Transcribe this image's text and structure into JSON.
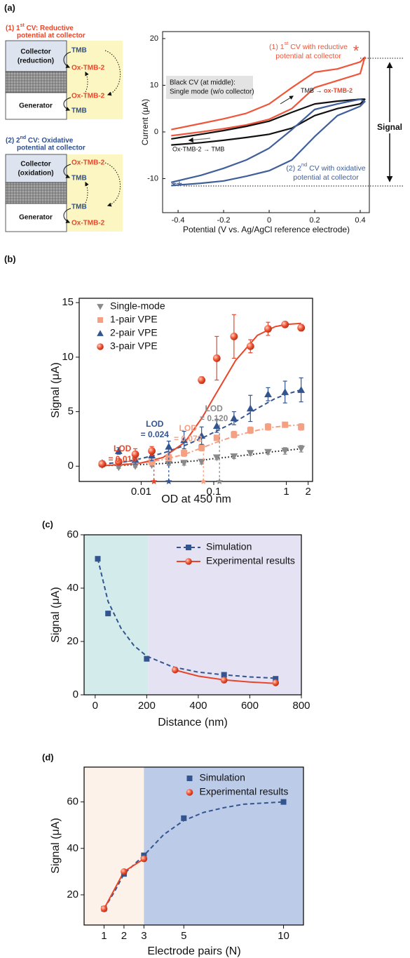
{
  "panel_labels": [
    "(a)",
    "(b)",
    "(c)",
    "(d)"
  ],
  "schematic": {
    "top": {
      "title": {
        "line1": [
          "(1)  1",
          "st",
          " CV: Reductive"
        ],
        "line2": "potential at collector"
      },
      "collector": [
        "Collector",
        "(reduction)"
      ],
      "generator": "Generator",
      "species": [
        "TMB",
        "Ox-TMB-2",
        "Ox-TMB-2",
        "TMB"
      ]
    },
    "bottom": {
      "title": {
        "line1": [
          "(2)  2",
          "nd",
          " CV: Oxidative"
        ],
        "line2": "potential at collector"
      },
      "collector": [
        "Collector",
        "(oxidation)"
      ],
      "generator": "Generator",
      "species": [
        "Ox-TMB-2",
        "TMB",
        "TMB",
        "Ox-TMB-2"
      ]
    }
  },
  "chart_data": [
    {
      "type": "line",
      "xlabel": "Potential (V vs. Ag/AgCl reference electrode)",
      "ylabel": "Current (μA)",
      "xlim": [
        -0.468,
        0.44
      ],
      "ylim": [
        -17.3,
        21.5
      ],
      "xticks": [
        -0.4,
        -0.2,
        0,
        0.2,
        0.4
      ],
      "yticks": [
        -10,
        0,
        10,
        20
      ],
      "series": [
        {
          "color": "#ef553b",
          "x": [
            -0.43,
            -0.3,
            -0.2,
            -0.1,
            0,
            0.1,
            0.2,
            0.3,
            0.4,
            0.42,
            0.4,
            0.3,
            0.2,
            0.1,
            0,
            -0.1,
            -0.2,
            -0.3,
            -0.43
          ],
          "values": [
            -0.8,
            0,
            0.7,
            1.5,
            2.7,
            5,
            9.5,
            11,
            12.5,
            16,
            15,
            13.5,
            12.8,
            9.5,
            6,
            4,
            2.8,
            1.8,
            0.5
          ]
        },
        {
          "color": "#111111",
          "x": [
            -0.43,
            -0.3,
            -0.2,
            -0.1,
            0,
            0.1,
            0.2,
            0.3,
            0.4,
            0.42,
            0.4,
            0.3,
            0.2,
            0.1,
            0,
            -0.1,
            -0.2,
            -0.3,
            -0.43
          ],
          "values": [
            -2.8,
            -2.3,
            -1.8,
            -1.2,
            -0.5,
            0.8,
            3.5,
            5,
            6,
            7,
            7,
            6.6,
            6,
            4.2,
            2.3,
            1.2,
            0.3,
            -0.5,
            -1.5
          ]
        },
        {
          "color": "#3f5f9a",
          "x": [
            -0.43,
            -0.3,
            -0.2,
            -0.1,
            0,
            0.1,
            0.2,
            0.3,
            0.4,
            0.42,
            0.4,
            0.3,
            0.2,
            0.1,
            0,
            -0.1,
            -0.2,
            -0.3,
            -0.43
          ],
          "values": [
            -11.5,
            -11,
            -10.5,
            -9.5,
            -8.3,
            -6,
            -1,
            3.5,
            5.5,
            6.5,
            7,
            6,
            4.8,
            0.5,
            -3.5,
            -6,
            -7.8,
            -9.3,
            -10.8
          ]
        }
      ],
      "annotations": {
        "first_cv": {
          "line1": [
            "(1) 1",
            "st",
            " CV with reductive"
          ],
          "line2": "potential at collector"
        },
        "second_cv": {
          "line1": [
            "(2) 2",
            "nd",
            " CV with oxidative"
          ],
          "line2": "potential at collector"
        },
        "black_cv": [
          "Black CV (at middle):",
          "Single mode (w/o collector)"
        ],
        "forward": [
          "TMB → ",
          "ox-TMB-2"
        ],
        "reverse": "Ox-TMB-2 → TMB",
        "star_1": "*",
        "star_2": "**",
        "signal": "Signal"
      }
    },
    {
      "type": "scatter",
      "xlabel": "OD at 450 nm",
      "ylabel": "Signal (μA)",
      "log_x": true,
      "xlim": [
        0.0014,
        2.3
      ],
      "ylim": [
        -1.4,
        15.4
      ],
      "xticks": [
        0.01,
        0.1,
        1,
        2
      ],
      "yticks": [
        0,
        5,
        10,
        15
      ],
      "legend": "upper left",
      "legend_line": false,
      "x": [
        0.0029,
        0.0049,
        0.0083,
        0.014,
        0.024,
        0.039,
        0.068,
        0.11,
        0.19,
        0.32,
        0.56,
        0.96,
        1.6
      ],
      "series": [
        {
          "name": "Single-mode",
          "color": "#8a8a8a",
          "marker": "triangle-down",
          "values": [
            0.1,
            -0.1,
            0,
            0.1,
            0.2,
            0.3,
            0.4,
            0.8,
            0.9,
            1.2,
            1.3,
            1.4,
            1.6
          ],
          "errors": [
            0.1,
            0.1,
            0.1,
            0.1,
            0.1,
            0.2,
            0.2,
            0.2,
            0.2,
            0.2,
            0.2,
            0.3,
            0.3
          ],
          "fit_x": [
            0.0029,
            0.006,
            0.01,
            0.02,
            0.04,
            0.07,
            0.1,
            0.2,
            0.4,
            0.7,
            1,
            1.6
          ],
          "fit": [
            0.05,
            0.1,
            0.15,
            0.25,
            0.4,
            0.55,
            0.7,
            0.9,
            1.15,
            1.35,
            1.45,
            1.6
          ],
          "fit_color": "#111111",
          "fit_style": "dot"
        },
        {
          "name": "1-pair VPE",
          "color": "#f4a083",
          "marker": "square",
          "values": [
            0.2,
            0.4,
            0.5,
            0.4,
            0.8,
            1.2,
            1.7,
            2.6,
            2.9,
            3.3,
            3.6,
            3.8,
            3.6
          ],
          "errors": [
            0.1,
            0.2,
            0.3,
            0.3,
            0.3,
            0.3,
            0.3,
            0.2,
            0.3,
            0.3,
            0.3,
            0.2,
            0.3
          ],
          "fit_x": [
            0.0029,
            0.006,
            0.01,
            0.02,
            0.04,
            0.07,
            0.1,
            0.2,
            0.4,
            0.7,
            1,
            1.6
          ],
          "fit": [
            0.1,
            0.2,
            0.3,
            0.6,
            1.1,
            1.7,
            2.1,
            2.8,
            3.3,
            3.6,
            3.7,
            3.8
          ],
          "fit_color": "#f4a083",
          "fit_style": "dashdot"
        },
        {
          "name": "2-pair VPE",
          "color": "#33558f",
          "marker": "triangle",
          "values": [
            0.3,
            1.4,
            0.6,
            1.0,
            1.8,
            2.4,
            2.8,
            3.7,
            4.4,
            5.3,
            6.6,
            6.8,
            7.0
          ],
          "errors": [
            0.2,
            0.3,
            0.4,
            0.5,
            0.5,
            0.8,
            0.8,
            0.6,
            0.6,
            1.2,
            0.6,
            1.0,
            1.1
          ],
          "fit_x": [
            0.0029,
            0.006,
            0.01,
            0.02,
            0.04,
            0.07,
            0.1,
            0.2,
            0.4,
            0.7,
            1,
            1.6
          ],
          "fit": [
            0.2,
            0.4,
            0.7,
            1.2,
            1.9,
            2.6,
            3.1,
            4.1,
            5.3,
            6.2,
            6.6,
            7.0
          ],
          "fit_color": "#33558f",
          "fit_style": "dash"
        },
        {
          "name": "3-pair VPE",
          "color": "#e8462a",
          "marker": "circle",
          "values": [
            0.2,
            0.4,
            1.1,
            1.4,
            null,
            null,
            7.9,
            9.9,
            11.9,
            11.0,
            12.6,
            13.0,
            12.7
          ],
          "errors": [
            0.2,
            0.3,
            0.5,
            0.4,
            null,
            null,
            0.3,
            2.0,
            2.0,
            0.6,
            0.6,
            0.2,
            0.3
          ],
          "fit_x": [
            0.0029,
            0.006,
            0.01,
            0.02,
            0.04,
            0.07,
            0.1,
            0.2,
            0.4,
            0.7,
            1,
            1.6
          ],
          "fit": [
            0.05,
            0.15,
            0.3,
            0.8,
            2.2,
            4.5,
            6.3,
            9.7,
            12.0,
            12.8,
            13.0,
            13.1
          ],
          "fit_color": "#e8462a",
          "fit_style": "solid"
        }
      ],
      "lod": [
        {
          "value": 0.015,
          "lines": [
            "LOD",
            "= 0.015"
          ],
          "color": "#e8462a"
        },
        {
          "value": 0.024,
          "lines": [
            "LOD",
            "= 0.024"
          ],
          "color": "#33558f"
        },
        {
          "value": 0.072,
          "lines": [
            "LOD",
            "= 0.072"
          ],
          "color": "#f4a083"
        },
        {
          "value": 0.12,
          "lines": [
            "LOD",
            "= 0.120"
          ],
          "color": "#8a8a8a"
        }
      ]
    },
    {
      "type": "scatter",
      "xlabel": "Distance (nm)",
      "ylabel": "Signal (μA)",
      "xlim": [
        -43,
        800
      ],
      "ylim": [
        0,
        60
      ],
      "xticks": [
        0,
        200,
        400,
        600,
        800
      ],
      "yticks": [
        0,
        20,
        40,
        60
      ],
      "legend": "upper right",
      "legend_line": true,
      "regions": [
        {
          "from": -43,
          "to": 205,
          "color": "#d3ebeb"
        },
        {
          "from": 205,
          "to": 800,
          "color": "#e4e2f3"
        }
      ],
      "series": [
        {
          "name": "Simulation",
          "color": "#33558f",
          "marker": "square",
          "x": [
            10,
            50,
            200,
            500,
            700
          ],
          "values": [
            51,
            30.5,
            13.5,
            7.5,
            6
          ],
          "fit_x": [
            10,
            50,
            100,
            150,
            200,
            300,
            400,
            500,
            600,
            700
          ],
          "fit": [
            51,
            35,
            25,
            18.5,
            14.5,
            10.5,
            8.5,
            7.5,
            6.7,
            6.2
          ],
          "fit_color": "#33558f",
          "fit_style": "dash"
        },
        {
          "name": "Experimental results",
          "color": "#e8462a",
          "marker": "circle",
          "x": [
            310,
            500,
            700
          ],
          "values": [
            9.3,
            5.5,
            4.5
          ],
          "fit_x": [
            310,
            400,
            500,
            600,
            700
          ],
          "fit": [
            9.3,
            7,
            5.6,
            4.8,
            4.3
          ],
          "fit_color": "#e8462a",
          "fit_style": "solid"
        }
      ]
    },
    {
      "type": "scatter",
      "xlabel": "Electrode pairs (N)",
      "ylabel": "Signal (μA)",
      "xlim": [
        0,
        11
      ],
      "ylim": [
        7,
        75
      ],
      "xticks": [
        1,
        2,
        3,
        5,
        10
      ],
      "yticks": [
        20,
        40,
        60
      ],
      "legend": "upper center",
      "legend_line": false,
      "regions": [
        {
          "from": 0,
          "to": 3,
          "color": "#fdf2ea"
        },
        {
          "from": 3,
          "to": 11,
          "color": "#bccbe8"
        }
      ],
      "series": [
        {
          "name": "Simulation",
          "color": "#33558f",
          "marker": "square",
          "x": [
            1,
            2,
            3,
            5,
            10
          ],
          "values": [
            14,
            29,
            37,
            53,
            60
          ],
          "fit_x": [
            1,
            1.5,
            2,
            2.5,
            3,
            4,
            5,
            6,
            7,
            8,
            10
          ],
          "fit": [
            14,
            21,
            29,
            33,
            37,
            46,
            52,
            55.5,
            57.5,
            59,
            60
          ],
          "fit_color": "#33558f",
          "fit_style": "dash"
        },
        {
          "name": "Experimental results",
          "color": "#e8462a",
          "marker": "circle",
          "x": [
            1,
            2,
            3
          ],
          "values": [
            14,
            30,
            35.5
          ],
          "fit_x": [
            1,
            2,
            3
          ],
          "fit": [
            14,
            30,
            35.5
          ],
          "fit_color": "#e8462a",
          "fit_style": "solid"
        }
      ]
    }
  ]
}
